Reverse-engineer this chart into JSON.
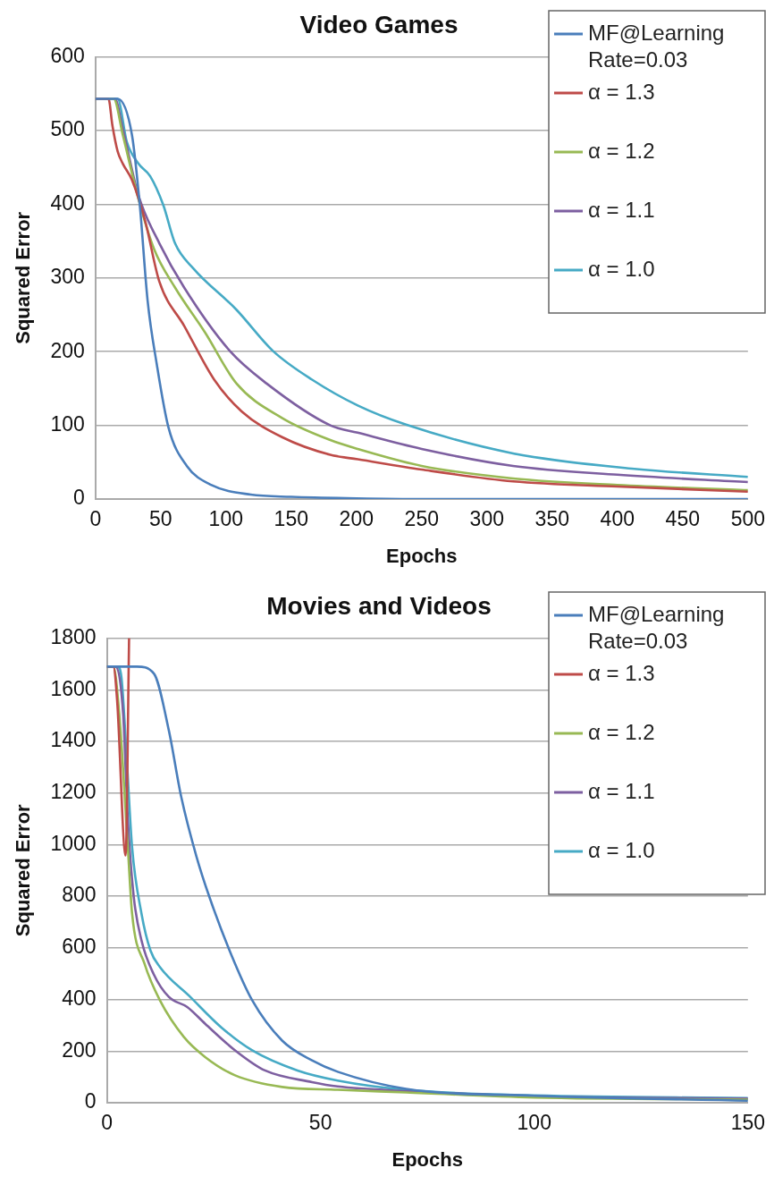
{
  "chart_data": [
    {
      "type": "line",
      "title": "Video Games",
      "xlabel": "Epochs",
      "ylabel": "Squared Error",
      "xlim": [
        0,
        500
      ],
      "xticks": [
        0,
        50,
        100,
        150,
        200,
        250,
        300,
        350,
        400,
        450,
        500
      ],
      "ylim": [
        0,
        600
      ],
      "yticks": [
        0,
        100,
        200,
        300,
        400,
        500,
        600
      ],
      "grid": "y",
      "legend": "top right",
      "marker": "none",
      "line_style": "solid",
      "series": [
        {
          "name": "MF@Learning Rate=0.03",
          "color": "#4a7ebb",
          "x": [
            0,
            17,
            28,
            34,
            40,
            47,
            56,
            70,
            89,
            119,
            150,
            200,
            250,
            300,
            400,
            500
          ],
          "values": [
            543,
            543,
            494,
            399,
            269,
            183,
            97,
            45,
            19,
            6,
            3,
            1,
            0,
            0,
            0,
            0
          ]
        },
        {
          "name": "α = 1.3",
          "color": "#be4b48",
          "x": [
            0,
            10,
            13,
            17,
            21,
            28,
            38,
            49,
            68,
            91,
            112,
            143,
            180,
            201,
            250,
            320,
            400,
            500
          ],
          "values": [
            543,
            543,
            507,
            472,
            455,
            433,
            378,
            295,
            235,
            162,
            119,
            84,
            60,
            54,
            40,
            24,
            17,
            10
          ]
        },
        {
          "name": "α = 1.2",
          "color": "#98b954",
          "x": [
            0,
            14,
            21,
            33,
            45,
            61,
            84,
            108,
            143,
            180,
            201,
            250,
            320,
            400,
            500
          ],
          "values": [
            543,
            543,
            494,
            407,
            339,
            287,
            226,
            157,
            110,
            80,
            68,
            45,
            28,
            19,
            12
          ]
        },
        {
          "name": "α = 1.1",
          "color": "#7d5fa0",
          "x": [
            0,
            15,
            21,
            33,
            49,
            68,
            103,
            131,
            180,
            201,
            250,
            320,
            400,
            500
          ],
          "values": [
            543,
            543,
            502,
            412,
            347,
            287,
            201,
            157,
            100,
            90,
            68,
            45,
            33,
            23
          ]
        },
        {
          "name": "α = 1.0",
          "color": "#46aac5",
          "x": [
            0,
            17,
            24,
            33,
            42,
            52,
            61,
            75,
            108,
            136,
            166,
            201,
            238,
            320,
            413,
            500
          ],
          "values": [
            543,
            543,
            485,
            455,
            438,
            399,
            347,
            313,
            257,
            201,
            162,
            127,
            101,
            62,
            41,
            30
          ]
        }
      ]
    },
    {
      "type": "line",
      "title": "Movies and Videos",
      "xlabel": "Epochs",
      "ylabel": "Squared Error",
      "xlim": [
        0,
        150
      ],
      "xticks": [
        0,
        50,
        100,
        150
      ],
      "ylim": [
        0,
        1800
      ],
      "yticks": [
        0,
        200,
        400,
        600,
        800,
        1000,
        1200,
        1400,
        1600,
        1800
      ],
      "grid": "y",
      "legend": "top right",
      "marker": "none",
      "line_style": "solid",
      "series": [
        {
          "name": "MF@Learning Rate=0.03",
          "color": "#4a7ebb",
          "x": [
            0,
            7,
            11,
            14.5,
            17.4,
            21,
            24,
            29,
            34,
            41,
            48,
            54,
            70,
            100,
            150
          ],
          "values": [
            1690,
            1690,
            1663,
            1443,
            1185,
            952,
            797,
            578,
            397,
            241,
            164,
            120,
            54,
            27,
            8
          ]
        },
        {
          "name": "α = 1.3",
          "color": "#be4b48",
          "x": [
            0,
            1.5,
            2.4,
            4.4,
            5.2
          ],
          "values": [
            1690,
            1690,
            1559,
            958,
            1800
          ]
        },
        {
          "name": "α = 1.2",
          "color": "#98b954",
          "x": [
            0,
            1.5,
            2.9,
            4.9,
            5.9,
            8.8,
            12.4,
            18,
            23,
            30,
            41,
            54,
            70,
            100,
            150
          ],
          "values": [
            1690,
            1690,
            1508,
            992,
            733,
            539,
            397,
            255,
            177,
            106,
            61,
            50,
            40,
            20,
            12
          ]
        },
        {
          "name": "α = 1.1",
          "color": "#7d5fa0",
          "x": [
            0,
            2,
            3.8,
            4.9,
            6.3,
            8.1,
            10.9,
            14.5,
            18.8,
            23,
            30,
            37,
            48,
            54,
            70,
            100,
            150
          ],
          "values": [
            1690,
            1690,
            1508,
            1100,
            797,
            629,
            500,
            410,
            371,
            306,
            203,
            125,
            80,
            63,
            45,
            25,
            16
          ]
        },
        {
          "name": "α = 1.0",
          "color": "#46aac5",
          "x": [
            0,
            2.5,
            3.4,
            4.5,
            5.9,
            8.1,
            10.2,
            12.4,
            19.5,
            26.7,
            34,
            44.6,
            54,
            70,
            100,
            150
          ],
          "values": [
            1690,
            1690,
            1650,
            1379,
            991,
            733,
            590,
            526,
            410,
            293,
            203,
            125,
            86,
            50,
            28,
            18
          ]
        }
      ]
    }
  ]
}
